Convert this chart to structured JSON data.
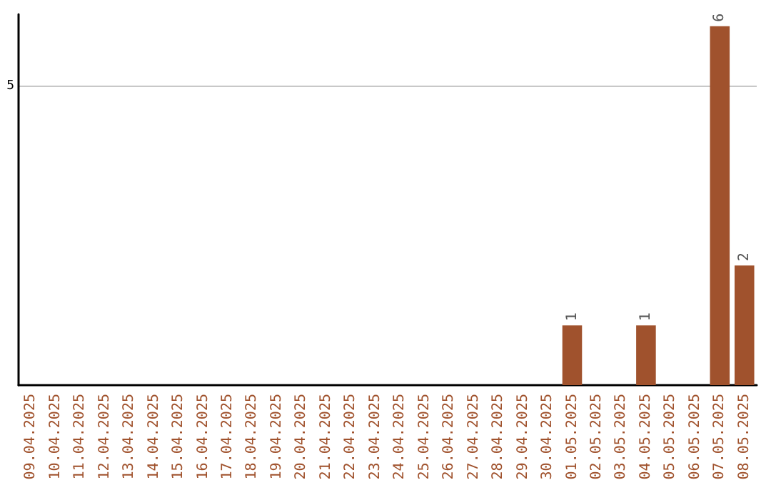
{
  "chart_data": {
    "type": "bar",
    "categories": [
      "09.04.2025",
      "10.04.2025",
      "11.04.2025",
      "12.04.2025",
      "13.04.2025",
      "14.04.2025",
      "15.04.2025",
      "16.04.2025",
      "17.04.2025",
      "18.04.2025",
      "19.04.2025",
      "20.04.2025",
      "21.04.2025",
      "22.04.2025",
      "23.04.2025",
      "24.04.2025",
      "25.04.2025",
      "26.04.2025",
      "27.04.2025",
      "28.04.2025",
      "29.04.2025",
      "30.04.2025",
      "01.05.2025",
      "02.05.2025",
      "03.05.2025",
      "04.05.2025",
      "05.05.2025",
      "06.05.2025",
      "07.05.2025",
      "08.05.2025"
    ],
    "values": [
      null,
      null,
      null,
      null,
      null,
      null,
      null,
      null,
      null,
      null,
      null,
      null,
      null,
      null,
      null,
      null,
      null,
      null,
      null,
      null,
      null,
      null,
      1,
      null,
      null,
      1,
      null,
      null,
      6,
      2
    ],
    "data_labels": true,
    "color": "#a0522d",
    "ylim": [
      0,
      6.2
    ],
    "yticks": [
      5
    ],
    "grid": "y"
  }
}
